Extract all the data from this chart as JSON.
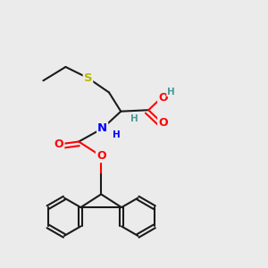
{
  "bg_color": "#ebebeb",
  "bond_color": "#1a1a1a",
  "bond_width": 1.5,
  "atom_colors": {
    "S": "#b8b800",
    "N": "#0000ff",
    "O": "#ff0000",
    "C": "#1a1a1a",
    "H": "#4a9a9a"
  },
  "font_size": 8.5,
  "fig_size": [
    3.0,
    3.0
  ],
  "dpi": 100
}
